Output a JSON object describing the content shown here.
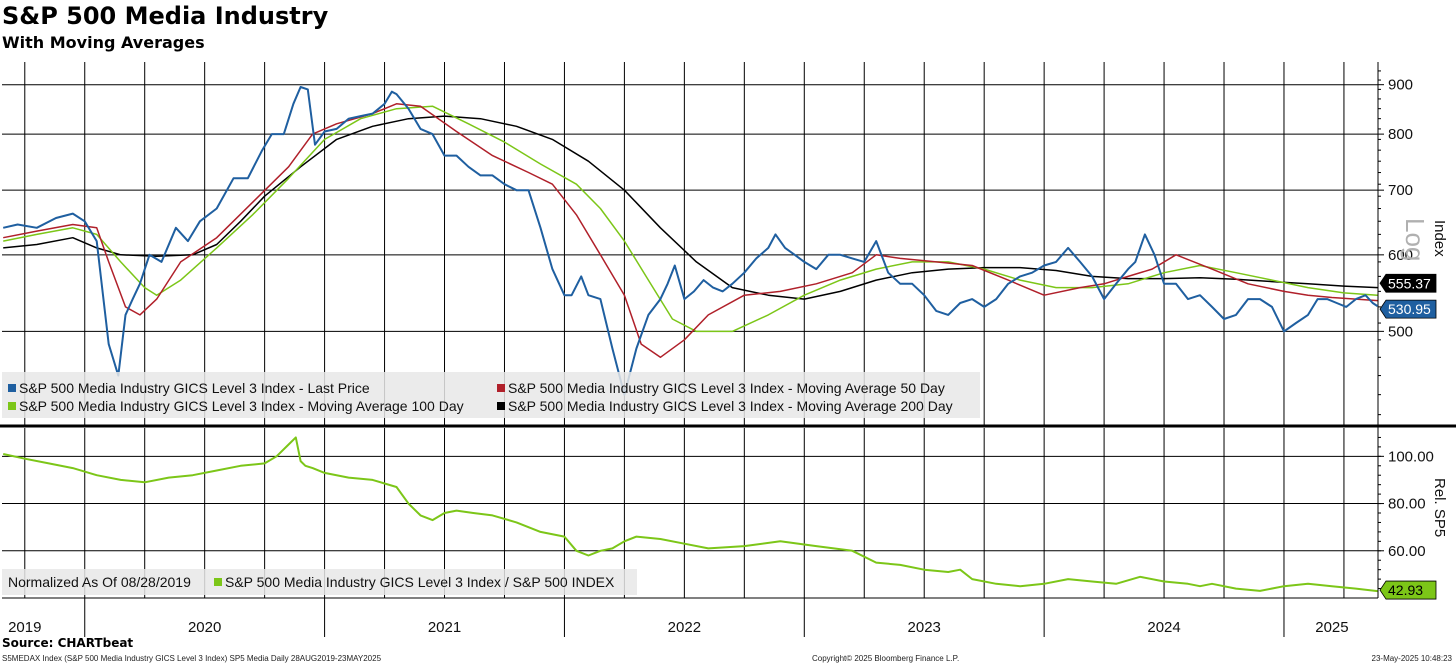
{
  "title": "S&P 500 Media Industry",
  "subtitle": "With Moving Averages",
  "source": "Source: CHARTbeat",
  "footer": {
    "left": "S5MEDAX Index (S&P 500 Media Industry GICS Level 3 Index) SP5 Media  Daily 28AUG2019-23MAY2025",
    "center": "Copyright© 2025 Bloomberg Finance L.P.",
    "right": "23-May-2025 10:48:23"
  },
  "colors": {
    "price": "#1f5fa0",
    "ma50": "#b0202a",
    "ma100": "#7cc618",
    "ma200": "#000000",
    "relative": "#7cc618",
    "grid": "#000000",
    "legend_bg": "#e8e8e8"
  },
  "legend": {
    "price": "S&P 500 Media Industry GICS Level 3 Index - Last Price",
    "ma50": "S&P 500 Media Industry GICS Level 3 Index - Moving Average 50 Day",
    "ma100": "S&P 500 Media Industry GICS Level 3 Index - Moving Average 100 Day",
    "ma200": "S&P 500 Media Industry GICS Level 3 Index - Moving Average 200 Day",
    "normalized": "Normalized As Of 08/28/2019",
    "relative": "S&P 500 Media Industry GICS Level 3 Index / S&P 500 INDEX"
  },
  "axis_titles": {
    "upper": "Index",
    "lower": "Rel. SP5",
    "scale_mark": "Log"
  },
  "chart_data": [
    {
      "type": "line",
      "panel": "upper",
      "scale": "log",
      "ylim": [
        400,
        950
      ],
      "yticks": [
        500,
        600,
        700,
        800,
        900
      ],
      "ytick_labels": [
        "500",
        "600",
        "700",
        "800",
        "900"
      ],
      "ylabel": "Index",
      "x_range": [
        2019.655,
        2025.392
      ],
      "x_year_labels": [
        "2019",
        "2020",
        "2021",
        "2022",
        "2023",
        "2024",
        "2025"
      ],
      "x_label_centers": [
        2019.75,
        2020.5,
        2021.5,
        2022.5,
        2023.5,
        2024.5,
        2025.2
      ],
      "x_year_boundaries": [
        2020.0,
        2021.0,
        2022.0,
        2023.0,
        2024.0,
        2025.0
      ],
      "x_grid_quarters": [
        2019.75,
        2020.0,
        2020.25,
        2020.5,
        2020.75,
        2021.0,
        2021.25,
        2021.5,
        2021.75,
        2022.0,
        2022.25,
        2022.5,
        2022.75,
        2023.0,
        2023.25,
        2023.5,
        2023.75,
        2024.0,
        2024.25,
        2024.5,
        2024.75,
        2025.0,
        2025.25
      ],
      "series": [
        {
          "name": "S&P 500 Media Industry GICS Level 3 Index - Last Price",
          "key": "price",
          "x": [
            2019.66,
            2019.72,
            2019.8,
            2019.88,
            2019.95,
            2020.0,
            2020.05,
            2020.1,
            2020.14,
            2020.17,
            2020.2,
            2020.23,
            2020.27,
            2020.32,
            2020.38,
            2020.43,
            2020.48,
            2020.55,
            2020.62,
            2020.68,
            2020.74,
            2020.78,
            2020.83,
            2020.87,
            2020.9,
            2020.93,
            2020.96,
            2021.0,
            2021.05,
            2021.1,
            2021.15,
            2021.2,
            2021.25,
            2021.28,
            2021.3,
            2021.35,
            2021.4,
            2021.45,
            2021.5,
            2021.55,
            2021.6,
            2021.65,
            2021.7,
            2021.75,
            2021.8,
            2021.85,
            2021.9,
            2021.95,
            2022.0,
            2022.03,
            2022.07,
            2022.1,
            2022.15,
            2022.2,
            2022.25,
            2022.3,
            2022.35,
            2022.4,
            2022.43,
            2022.46,
            2022.5,
            2022.54,
            2022.58,
            2022.62,
            2022.66,
            2022.7,
            2022.75,
            2022.8,
            2022.85,
            2022.88,
            2022.92,
            2022.96,
            2023.0,
            2023.05,
            2023.1,
            2023.15,
            2023.2,
            2023.25,
            2023.3,
            2023.35,
            2023.4,
            2023.45,
            2023.5,
            2023.55,
            2023.6,
            2023.65,
            2023.7,
            2023.75,
            2023.8,
            2023.85,
            2023.9,
            2023.95,
            2024.0,
            2024.05,
            2024.1,
            2024.15,
            2024.2,
            2024.25,
            2024.3,
            2024.35,
            2024.38,
            2024.42,
            2024.46,
            2024.5,
            2024.55,
            2024.6,
            2024.65,
            2024.7,
            2024.75,
            2024.8,
            2024.85,
            2024.9,
            2024.95,
            2025.0,
            2025.05,
            2025.1,
            2025.14,
            2025.18,
            2025.22,
            2025.26,
            2025.3,
            2025.34,
            2025.37,
            2025.39
          ],
          "values": [
            640,
            645,
            640,
            655,
            662,
            650,
            620,
            485,
            450,
            520,
            540,
            560,
            600,
            590,
            640,
            620,
            650,
            670,
            720,
            720,
            770,
            800,
            800,
            860,
            895,
            890,
            780,
            805,
            810,
            830,
            835,
            840,
            860,
            885,
            880,
            850,
            810,
            800,
            760,
            760,
            740,
            725,
            725,
            710,
            700,
            700,
            640,
            580,
            545,
            545,
            570,
            545,
            540,
            480,
            430,
            480,
            520,
            540,
            560,
            585,
            540,
            550,
            565,
            555,
            550,
            560,
            575,
            595,
            610,
            630,
            610,
            600,
            590,
            580,
            600,
            600,
            595,
            590,
            620,
            575,
            560,
            560,
            545,
            525,
            520,
            535,
            540,
            530,
            540,
            560,
            570,
            575,
            585,
            590,
            610,
            590,
            570,
            540,
            560,
            580,
            590,
            630,
            600,
            560,
            560,
            540,
            545,
            530,
            515,
            520,
            540,
            540,
            530,
            500,
            510,
            520,
            540,
            540,
            535,
            530,
            540,
            545,
            535,
            531
          ]
        },
        {
          "name": "S&P 500 Media Industry GICS Level 3 Index - Moving Average 50 Day",
          "key": "ma50",
          "x": [
            2019.66,
            2019.8,
            2019.95,
            2020.05,
            2020.1,
            2020.17,
            2020.23,
            2020.3,
            2020.4,
            2020.55,
            2020.7,
            2020.85,
            2020.95,
            2021.05,
            2021.2,
            2021.3,
            2021.4,
            2021.55,
            2021.7,
            2021.85,
            2021.95,
            2022.05,
            2022.15,
            2022.25,
            2022.32,
            2022.4,
            2022.5,
            2022.6,
            2022.75,
            2022.9,
            2023.05,
            2023.2,
            2023.3,
            2023.4,
            2023.55,
            2023.7,
            2023.85,
            2024.0,
            2024.15,
            2024.25,
            2024.35,
            2024.45,
            2024.55,
            2024.7,
            2024.85,
            2025.0,
            2025.1,
            2025.2,
            2025.3,
            2025.39
          ],
          "values": [
            625,
            635,
            645,
            640,
            590,
            530,
            520,
            540,
            590,
            625,
            680,
            740,
            800,
            820,
            840,
            860,
            855,
            805,
            760,
            730,
            710,
            660,
            600,
            545,
            485,
            470,
            490,
            520,
            545,
            550,
            560,
            575,
            600,
            595,
            590,
            585,
            565,
            545,
            555,
            560,
            570,
            580,
            600,
            580,
            560,
            550,
            545,
            542,
            540,
            538
          ]
        },
        {
          "name": "S&P 500 Media Industry GICS Level 3 Index - Moving Average 100 Day",
          "key": "ma100",
          "x": [
            2019.66,
            2019.8,
            2019.95,
            2020.05,
            2020.15,
            2020.25,
            2020.3,
            2020.4,
            2020.55,
            2020.7,
            2020.85,
            2021.0,
            2021.15,
            2021.3,
            2021.45,
            2021.6,
            2021.75,
            2021.9,
            2022.05,
            2022.15,
            2022.25,
            2022.35,
            2022.45,
            2022.55,
            2022.7,
            2022.85,
            2023.0,
            2023.15,
            2023.3,
            2023.45,
            2023.6,
            2023.75,
            2023.9,
            2024.05,
            2024.2,
            2024.35,
            2024.5,
            2024.65,
            2024.8,
            2024.95,
            2025.1,
            2025.25,
            2025.39
          ],
          "values": [
            620,
            630,
            640,
            630,
            590,
            555,
            545,
            565,
            610,
            660,
            720,
            790,
            830,
            850,
            855,
            820,
            785,
            745,
            710,
            670,
            620,
            565,
            515,
            500,
            500,
            520,
            545,
            565,
            580,
            590,
            590,
            580,
            565,
            555,
            555,
            560,
            575,
            585,
            575,
            565,
            555,
            548,
            545
          ]
        },
        {
          "name": "S&P 500 Media Industry GICS Level 3 Index - Moving Average 200 Day",
          "key": "ma200",
          "x": [
            2019.66,
            2019.8,
            2019.95,
            2020.05,
            2020.15,
            2020.3,
            2020.45,
            2020.55,
            2020.65,
            2020.75,
            2020.9,
            2021.05,
            2021.2,
            2021.35,
            2021.5,
            2021.65,
            2021.8,
            2021.95,
            2022.1,
            2022.25,
            2022.4,
            2022.55,
            2022.7,
            2022.85,
            2023.0,
            2023.15,
            2023.3,
            2023.45,
            2023.6,
            2023.75,
            2023.9,
            2024.05,
            2024.2,
            2024.35,
            2024.5,
            2024.65,
            2024.8,
            2024.95,
            2025.1,
            2025.25,
            2025.39
          ],
          "values": [
            610,
            615,
            625,
            610,
            600,
            598,
            600,
            615,
            650,
            690,
            740,
            790,
            815,
            830,
            835,
            830,
            815,
            790,
            750,
            700,
            640,
            590,
            555,
            545,
            540,
            550,
            565,
            575,
            580,
            582,
            582,
            578,
            570,
            567,
            567,
            568,
            566,
            563,
            560,
            557,
            555
          ]
        }
      ],
      "last_value_labels": [
        {
          "series": "ma200",
          "text": "555.37",
          "value": 555.37,
          "bg": "#000000",
          "fg": "#ffffff"
        },
        {
          "series": "price",
          "text": "530.95",
          "value": 530.95,
          "bg": "#1f5fa0",
          "fg": "#ffffff"
        }
      ]
    },
    {
      "type": "line",
      "panel": "lower",
      "scale": "linear",
      "ylim": [
        40,
        112
      ],
      "yticks": [
        60,
        80,
        100
      ],
      "ytick_labels": [
        "60.00",
        "80.00",
        "100.00"
      ],
      "ylabel": "Rel. SP5",
      "series": [
        {
          "name": "S&P 500 Media Industry GICS Level 3 Index / S&P 500 INDEX",
          "key": "relative",
          "x": [
            2019.66,
            2019.75,
            2019.85,
            2019.95,
            2020.05,
            2020.15,
            2020.25,
            2020.35,
            2020.45,
            2020.55,
            2020.65,
            2020.75,
            2020.8,
            2020.85,
            2020.88,
            2020.9,
            2020.92,
            2020.95,
            2021.0,
            2021.1,
            2021.2,
            2021.3,
            2021.35,
            2021.4,
            2021.45,
            2021.5,
            2021.55,
            2021.62,
            2021.7,
            2021.8,
            2021.9,
            2022.0,
            2022.05,
            2022.1,
            2022.15,
            2022.2,
            2022.25,
            2022.3,
            2022.4,
            2022.5,
            2022.6,
            2022.75,
            2022.9,
            2023.05,
            2023.2,
            2023.3,
            2023.4,
            2023.5,
            2023.6,
            2023.65,
            2023.7,
            2023.8,
            2023.9,
            2024.0,
            2024.1,
            2024.2,
            2024.3,
            2024.4,
            2024.5,
            2024.6,
            2024.65,
            2024.7,
            2024.8,
            2024.9,
            2025.0,
            2025.1,
            2025.2,
            2025.3,
            2025.39
          ],
          "values": [
            101,
            99,
            97,
            95,
            92,
            90,
            89,
            91,
            92,
            94,
            96,
            97,
            100,
            105,
            108,
            98,
            96,
            95,
            93,
            91,
            90,
            87,
            80,
            75,
            73,
            76,
            77,
            76,
            75,
            72,
            68,
            66,
            60,
            58,
            60,
            61,
            64,
            66,
            65,
            63,
            61,
            62,
            64,
            62,
            60,
            55,
            54,
            52,
            51,
            52,
            48,
            46,
            45,
            46,
            48,
            47,
            46,
            49,
            47,
            46,
            45,
            46,
            44,
            43,
            45,
            46,
            45,
            44,
            42.93
          ]
        }
      ],
      "last_value_labels": [
        {
          "series": "relative",
          "text": "42.93",
          "value": 42.93,
          "bg": "#7cc618",
          "fg": "#000000"
        }
      ]
    }
  ]
}
